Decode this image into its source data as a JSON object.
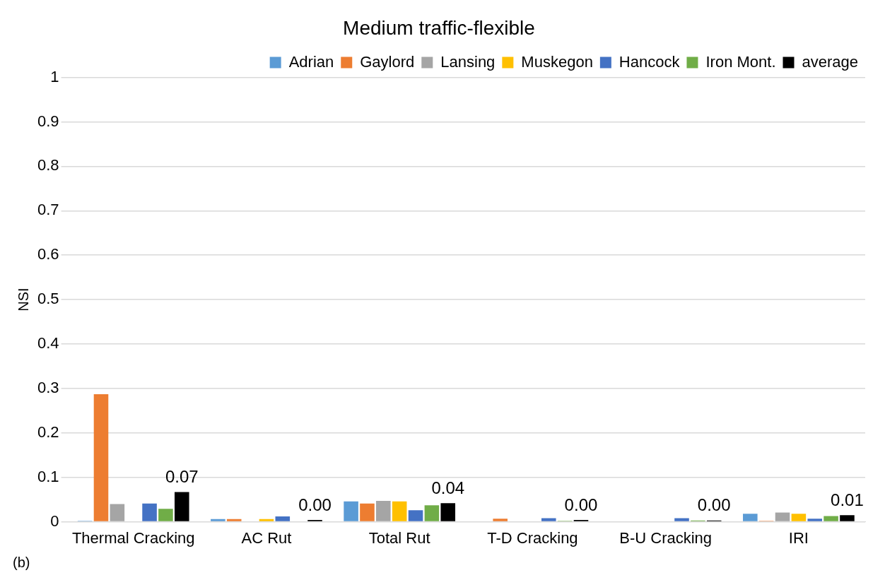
{
  "chart_data": {
    "type": "bar",
    "title": "Medium traffic-flexible",
    "ylabel": "NSI",
    "annotations": [
      "(b)"
    ],
    "categories": [
      "Thermal Cracking",
      "AC Rut",
      "Total Rut",
      "T-D Cracking",
      "B-U Cracking",
      "IRI"
    ],
    "series": [
      {
        "name": "Adrian",
        "color": "#5b9bd5",
        "values": [
          0.002,
          0.006,
          0.046,
          0,
          0,
          0.018
        ]
      },
      {
        "name": "Gaylord",
        "color": "#ed7d31",
        "values": [
          0.287,
          0.006,
          0.041,
          0.007,
          0,
          0.002
        ]
      },
      {
        "name": "Lansing",
        "color": "#a5a5a5",
        "values": [
          0.04,
          0,
          0.047,
          0,
          0,
          0.021
        ]
      },
      {
        "name": "Muskegon",
        "color": "#ffc000",
        "values": [
          0,
          0.006,
          0.046,
          0,
          0,
          0.018
        ]
      },
      {
        "name": "Hancock",
        "color": "#4472c4",
        "values": [
          0.041,
          0.012,
          0.026,
          0.008,
          0.008,
          0.007
        ]
      },
      {
        "name": "Iron Mont.",
        "color": "#70ad47",
        "values": [
          0.029,
          0,
          0.037,
          0.002,
          0.003,
          0.013
        ]
      },
      {
        "name": "average",
        "color": "#000000",
        "values": [
          0.067,
          0.004,
          0.042,
          0.004,
          0.003,
          0.015
        ],
        "value_labels": [
          "0.07",
          "0.00",
          "0.04",
          "0.00",
          "0.00",
          "0.01"
        ]
      }
    ],
    "ylim": [
      0,
      1
    ],
    "yticks": [
      0,
      0.1,
      0.2,
      0.3,
      0.4,
      0.5,
      0.6,
      0.7,
      0.8,
      0.9,
      1
    ],
    "grid": "y",
    "legend": "top right"
  }
}
